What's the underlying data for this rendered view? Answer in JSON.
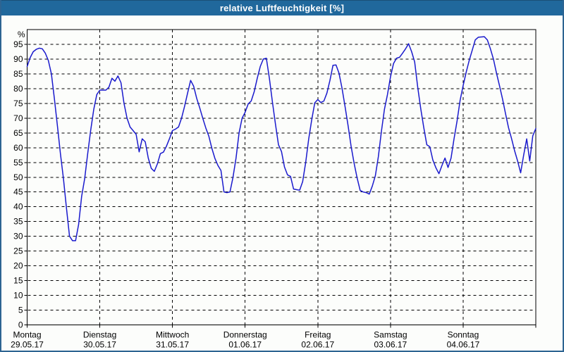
{
  "window": {
    "title": "relative Luftfeuchtigkeit [%]"
  },
  "colors": {
    "titlebar": "#20689c",
    "titlebar_top_edge": "#1a4f77",
    "window_border": "#2d6492",
    "plot_background": "#fcfdfb",
    "grid": "#000000",
    "line": "#1a1acd",
    "title_text": "#ffffff",
    "label_text": "#000000"
  },
  "chart_data": {
    "type": "line",
    "title": "relative Luftfeuchtigkeit [%]",
    "ylabel": "%",
    "ylim": [
      0,
      100
    ],
    "yticks": [
      0,
      5,
      10,
      15,
      20,
      25,
      30,
      35,
      40,
      45,
      50,
      55,
      60,
      65,
      70,
      75,
      80,
      85,
      90,
      95
    ],
    "grid_style": "dashed",
    "legend": "none",
    "x_unit": "hours",
    "x_range_hours": [
      0,
      168
    ],
    "days": [
      {
        "label": "Montag",
        "date": "29.05.17"
      },
      {
        "label": "Dienstag",
        "date": "30.05.17"
      },
      {
        "label": "Mittwoch",
        "date": "31.05.17"
      },
      {
        "label": "Donnerstag",
        "date": "01.06.17"
      },
      {
        "label": "Freitag",
        "date": "02.06.17"
      },
      {
        "label": "Samstag",
        "date": "03.06.17"
      },
      {
        "label": "Sonntag",
        "date": "04.06.17"
      }
    ],
    "series": [
      {
        "name": "relative Luftfeuchtigkeit [%]",
        "color": "#1a1acd",
        "sample_interval_hours": 1,
        "values": [
          87.5,
          90.5,
          92.5,
          93.3,
          93.7,
          93.5,
          92,
          89.5,
          85,
          76.5,
          67.5,
          58,
          49.5,
          39.5,
          30,
          28.5,
          28.5,
          34,
          43.5,
          49.5,
          58,
          66,
          73,
          78,
          79.5,
          79.5,
          79.5,
          80.5,
          83.5,
          82.5,
          84.3,
          82,
          75,
          70,
          67,
          65.8,
          64.5,
          58.6,
          63,
          62,
          56.5,
          53,
          52,
          54.5,
          58,
          58.5,
          60.5,
          63,
          65.8,
          66.3,
          67,
          70,
          74,
          78.5,
          82.8,
          80.8,
          76.7,
          73.5,
          70,
          66.7,
          63.9,
          59.8,
          56.4,
          54,
          52.3,
          45,
          44.8,
          45,
          50,
          56.5,
          65,
          70,
          72,
          74.8,
          75.8,
          79,
          83.5,
          87.5,
          90,
          90.3,
          83.5,
          75.5,
          68,
          61,
          58.7,
          53.5,
          50.8,
          50.3,
          46,
          45.8,
          45.6,
          48.5,
          55,
          63,
          69.5,
          75.2,
          76.3,
          75.3,
          75.8,
          78.5,
          82.8,
          87.9,
          88,
          85.3,
          80.2,
          74,
          67.5,
          60.5,
          54.7,
          49.7,
          45.5,
          45,
          44.8,
          44.3,
          47,
          50.5,
          57,
          65.5,
          73,
          78,
          84,
          88.5,
          90.3,
          90.6,
          92,
          93.5,
          95.2,
          92.5,
          89,
          80.5,
          73.2,
          66.8,
          61,
          60.3,
          55.8,
          53.2,
          51.2,
          54,
          56.5,
          53.3,
          56.5,
          63,
          69,
          76,
          81,
          85.5,
          89.5,
          93,
          96.5,
          97.4,
          97.5,
          97.6,
          96.5,
          93.5,
          90,
          85.3,
          81,
          76.5,
          71.5,
          66.8,
          63.1,
          59,
          55.5,
          51.5,
          57.5,
          63,
          55.5,
          64,
          66.5
        ]
      }
    ]
  }
}
